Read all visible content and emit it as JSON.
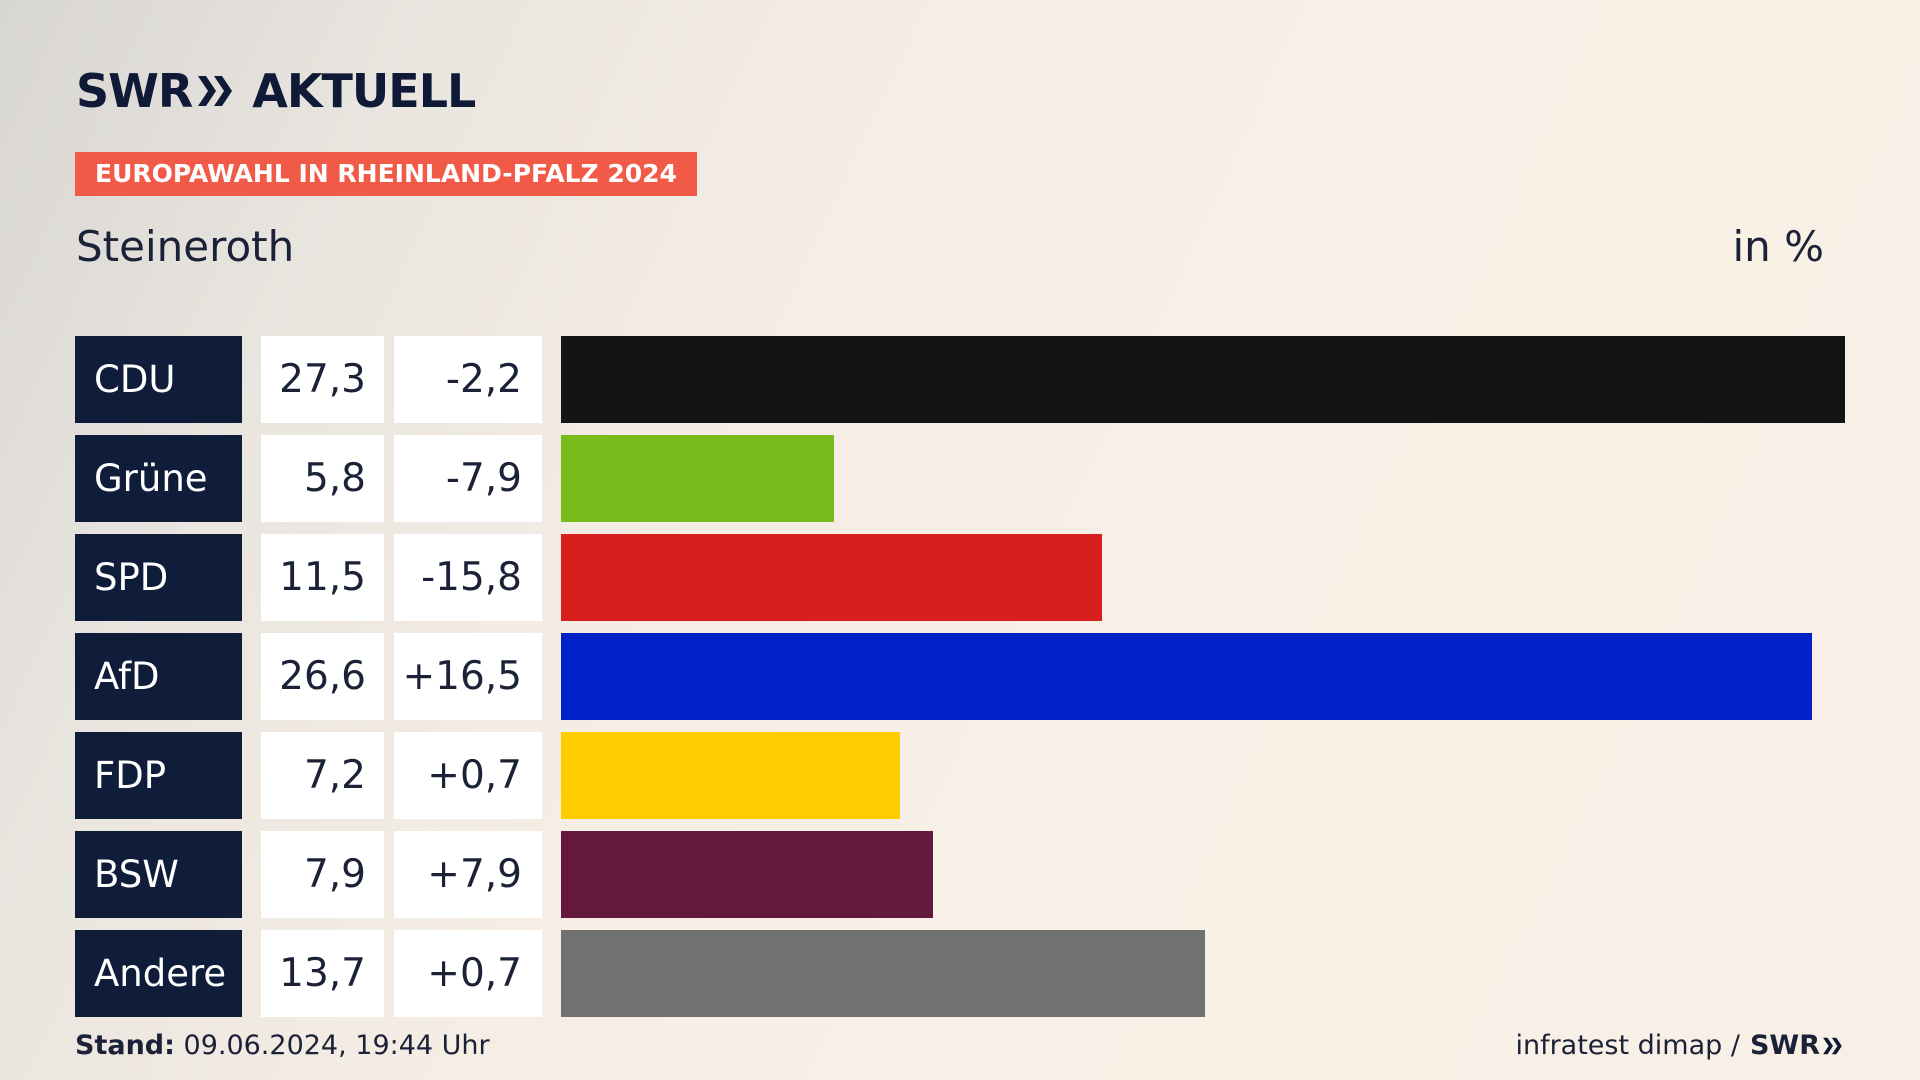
{
  "brand": {
    "left": "SWR",
    "right": "AKTUELL"
  },
  "tag": "EUROPAWAHL IN RHEINLAND-PFALZ 2024",
  "place": "Steineroth",
  "unit_label": "in %",
  "colors": {
    "navy": "#0f1c3a",
    "tag_red": "#f25a48"
  },
  "chart_data": {
    "type": "bar",
    "title": "Steineroth",
    "unit": "in %",
    "categories": [
      "CDU",
      "Grüne",
      "SPD",
      "AfD",
      "FDP",
      "BSW",
      "Andere"
    ],
    "values": [
      27.3,
      5.8,
      11.5,
      26.6,
      7.2,
      7.9,
      13.7
    ],
    "value_labels": [
      "27,3",
      "5,8",
      "11,5",
      "26,6",
      "7,2",
      "7,9",
      "13,7"
    ],
    "changes": [
      -2.2,
      -7.9,
      -15.8,
      16.5,
      0.7,
      7.9,
      0.7
    ],
    "change_labels": [
      "-2,2",
      "-7,9",
      "-15,8",
      "+16,5",
      "+0,7",
      "+7,9",
      "+0,7"
    ],
    "colors": [
      "#141414",
      "#78bc1b",
      "#d71f1d",
      "#0021c8",
      "#ffcc00",
      "#65183e",
      "#717171"
    ],
    "xlim": [
      0,
      27.3
    ]
  },
  "footer": {
    "stand_label": "Stand:",
    "stand_value": "09.06.2024, 19:44 Uhr",
    "source": "infratest dimap /",
    "source_brand": "SWR"
  }
}
